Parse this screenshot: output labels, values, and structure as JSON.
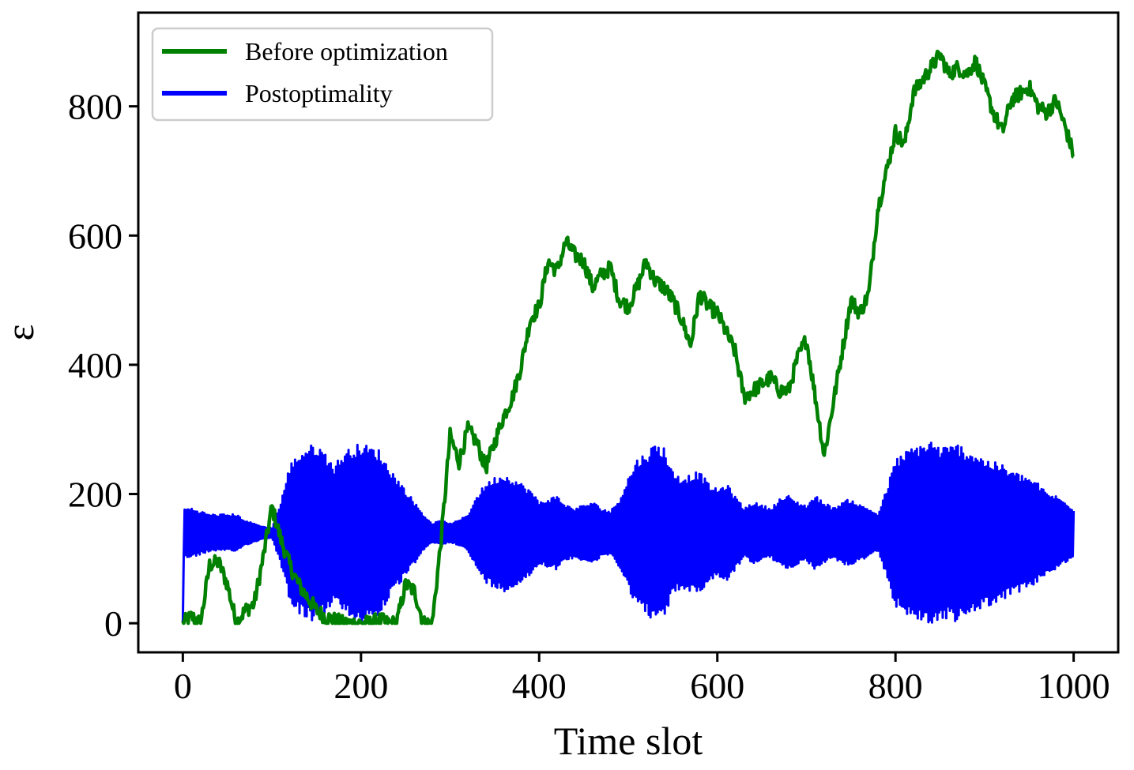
{
  "chart_data": {
    "type": "line",
    "title": "",
    "xlabel": "Time slot",
    "ylabel": "ε",
    "xlim": [
      -50,
      1050
    ],
    "ylim": [
      -45,
      945
    ],
    "xticks": [
      0,
      200,
      400,
      600,
      800,
      1000
    ],
    "yticks": [
      0,
      200,
      400,
      600,
      800
    ],
    "grid": false,
    "legend": {
      "position": "top-left"
    },
    "series": [
      {
        "name": "Before optimization",
        "color": "#008000",
        "noise": 12,
        "x": [
          0,
          10,
          20,
          30,
          40,
          50,
          60,
          70,
          80,
          90,
          100,
          110,
          120,
          130,
          140,
          150,
          160,
          170,
          180,
          190,
          200,
          210,
          220,
          230,
          240,
          250,
          260,
          270,
          280,
          290,
          300,
          310,
          320,
          330,
          340,
          350,
          360,
          370,
          380,
          390,
          400,
          410,
          420,
          430,
          440,
          450,
          460,
          470,
          480,
          490,
          500,
          510,
          520,
          530,
          540,
          550,
          560,
          570,
          580,
          590,
          600,
          610,
          620,
          630,
          640,
          650,
          660,
          670,
          680,
          690,
          700,
          710,
          720,
          730,
          740,
          750,
          760,
          770,
          780,
          790,
          800,
          810,
          820,
          830,
          840,
          850,
          860,
          870,
          880,
          890,
          900,
          910,
          920,
          930,
          940,
          950,
          960,
          970,
          980,
          990,
          1000
        ],
        "y": [
          0,
          10,
          0,
          90,
          95,
          60,
          0,
          20,
          30,
          100,
          180,
          130,
          90,
          60,
          40,
          20,
          10,
          5,
          0,
          0,
          0,
          0,
          5,
          0,
          0,
          60,
          50,
          0,
          0,
          130,
          290,
          250,
          300,
          280,
          240,
          280,
          320,
          350,
          400,
          470,
          490,
          560,
          545,
          590,
          570,
          560,
          520,
          540,
          550,
          500,
          490,
          520,
          560,
          530,
          520,
          500,
          470,
          430,
          510,
          490,
          480,
          450,
          420,
          350,
          360,
          370,
          380,
          360,
          360,
          410,
          440,
          350,
          260,
          340,
          420,
          500,
          480,
          510,
          640,
          700,
          760,
          740,
          820,
          840,
          860,
          880,
          850,
          860,
          850,
          870,
          830,
          790,
          760,
          810,
          820,
          830,
          800,
          790,
          810,
          770,
          725
        ]
      },
      {
        "name": "Postoptimality",
        "color": "#0000ff",
        "center": 140,
        "cycles_per_slot": 0.5,
        "x": [
          0,
          10,
          20,
          30,
          40,
          50,
          60,
          70,
          80,
          90,
          100,
          110,
          120,
          130,
          140,
          150,
          160,
          170,
          180,
          190,
          200,
          210,
          220,
          230,
          240,
          250,
          260,
          270,
          280,
          290,
          300,
          310,
          320,
          330,
          340,
          350,
          360,
          370,
          380,
          390,
          400,
          410,
          420,
          430,
          440,
          450,
          460,
          470,
          480,
          490,
          500,
          510,
          520,
          530,
          540,
          550,
          560,
          570,
          580,
          590,
          600,
          610,
          620,
          630,
          640,
          650,
          660,
          670,
          680,
          690,
          700,
          710,
          720,
          730,
          740,
          750,
          760,
          770,
          780,
          790,
          800,
          810,
          820,
          830,
          840,
          850,
          860,
          870,
          880,
          890,
          900,
          910,
          920,
          930,
          940,
          950,
          960,
          970,
          980,
          990,
          1000
        ],
        "amplitude": [
          40,
          40,
          35,
          30,
          30,
          30,
          30,
          20,
          15,
          10,
          8,
          50,
          110,
          130,
          140,
          145,
          130,
          110,
          130,
          140,
          145,
          140,
          135,
          110,
          90,
          70,
          50,
          30,
          15,
          20,
          15,
          20,
          30,
          60,
          80,
          90,
          95,
          90,
          80,
          70,
          50,
          55,
          60,
          45,
          40,
          45,
          50,
          40,
          35,
          55,
          90,
          120,
          130,
          145,
          140,
          100,
          90,
          95,
          100,
          80,
          70,
          80,
          60,
          40,
          50,
          45,
          40,
          55,
          60,
          50,
          45,
          60,
          50,
          40,
          50,
          55,
          45,
          40,
          30,
          70,
          120,
          130,
          140,
          145,
          150,
          140,
          140,
          145,
          135,
          130,
          120,
          115,
          110,
          100,
          95,
          90,
          80,
          65,
          60,
          50,
          40
        ]
      }
    ]
  }
}
